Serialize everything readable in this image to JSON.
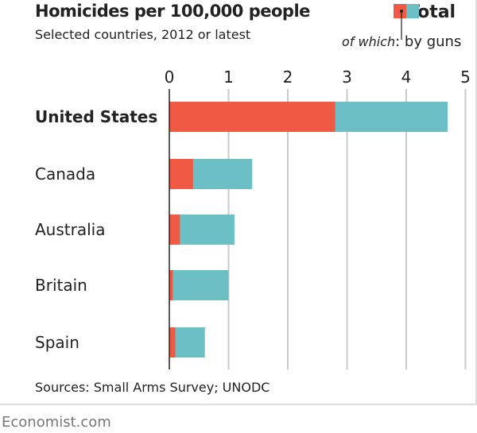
{
  "chart_data": {
    "type": "bar",
    "orientation": "horizontal",
    "stacked": "overlay",
    "title": "Homicides per 100,000 people",
    "subtitle": "Selected countries, 2012 or latest",
    "categories": [
      "United States",
      "Canada",
      "Australia",
      "Britain",
      "Spain"
    ],
    "highlight_category": "United States",
    "series": [
      {
        "name": "Total",
        "values": [
          4.7,
          1.4,
          1.1,
          1.0,
          0.6
        ],
        "color": "#6cbfc4"
      },
      {
        "name": "by guns",
        "values": [
          2.8,
          0.4,
          0.18,
          0.06,
          0.1
        ],
        "color": "#f05a44"
      }
    ],
    "legend": {
      "total": "Total",
      "of_which": "of which",
      "guns": ": by guns",
      "placement": "top-right"
    },
    "xlim": [
      0,
      5
    ],
    "xticks": [
      "0",
      "1",
      "2",
      "3",
      "4",
      "5"
    ],
    "grid": true,
    "source": "Sources: Small Arms Survey; UNODC",
    "footer": "Economist.com"
  }
}
